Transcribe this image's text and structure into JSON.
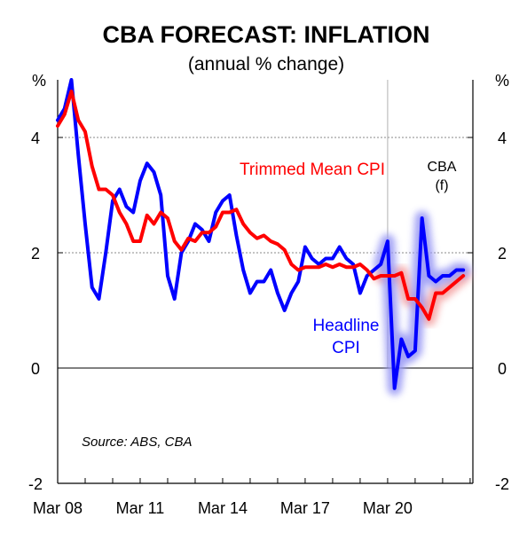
{
  "chart_data": {
    "type": "line",
    "title": "CBA FORECAST: INFLATION",
    "subtitle": "(annual % change)",
    "ylabel_left": "%",
    "ylabel_right": "%",
    "ylim": [
      -2,
      5
    ],
    "xlim": [
      2008.0,
      2023.1
    ],
    "yticks": [
      {
        "value": -2,
        "label": "-2"
      },
      {
        "value": 0,
        "label": "0"
      },
      {
        "value": 2,
        "label": "2"
      },
      {
        "value": 4,
        "label": "4"
      }
    ],
    "xticks": [
      {
        "value": 2008.0,
        "label": "Mar 08"
      },
      {
        "value": 2011.0,
        "label": "Mar 11"
      },
      {
        "value": 2014.0,
        "label": "Mar 14"
      },
      {
        "value": 2017.0,
        "label": "Mar 17"
      },
      {
        "value": 2020.0,
        "label": "Mar 20"
      }
    ],
    "gridlines": [
      2,
      4
    ],
    "forecast_start": 2020.0,
    "forecast_label_line1": "CBA",
    "forecast_label_line2": "(f)",
    "source": "Source: ABS, CBA",
    "series": [
      {
        "name": "Trimmed Mean CPI",
        "label_line1": "Trimmed Mean CPI",
        "color": "#ff0000",
        "x": [
          2008.0,
          2008.25,
          2008.5,
          2008.75,
          2009.0,
          2009.25,
          2009.5,
          2009.75,
          2010.0,
          2010.25,
          2010.5,
          2010.75,
          2011.0,
          2011.25,
          2011.5,
          2011.75,
          2012.0,
          2012.25,
          2012.5,
          2012.75,
          2013.0,
          2013.25,
          2013.5,
          2013.75,
          2014.0,
          2014.25,
          2014.5,
          2014.75,
          2015.0,
          2015.25,
          2015.5,
          2015.75,
          2016.0,
          2016.25,
          2016.5,
          2016.75,
          2017.0,
          2017.25,
          2017.5,
          2017.75,
          2018.0,
          2018.25,
          2018.5,
          2018.75,
          2019.0,
          2019.25,
          2019.5,
          2019.75,
          2020.0,
          2020.25,
          2020.5,
          2020.75,
          2021.0,
          2021.25,
          2021.5,
          2021.75,
          2022.0,
          2022.25,
          2022.5,
          2022.75
        ],
        "values": [
          4.2,
          4.4,
          4.8,
          4.3,
          4.1,
          3.5,
          3.1,
          3.1,
          3.0,
          2.7,
          2.5,
          2.2,
          2.2,
          2.65,
          2.5,
          2.7,
          2.6,
          2.2,
          2.05,
          2.25,
          2.2,
          2.35,
          2.35,
          2.45,
          2.7,
          2.7,
          2.75,
          2.5,
          2.35,
          2.25,
          2.3,
          2.2,
          2.15,
          2.05,
          1.8,
          1.7,
          1.75,
          1.75,
          1.75,
          1.8,
          1.75,
          1.8,
          1.75,
          1.75,
          1.8,
          1.7,
          1.55,
          1.6,
          1.6,
          1.6,
          1.65,
          1.2,
          1.2,
          1.05,
          0.85,
          1.3,
          1.3,
          1.4,
          1.5,
          1.6
        ]
      },
      {
        "name": "Headline CPI",
        "label_line1": "Headline",
        "label_line2": "CPI",
        "color": "#0000ff",
        "x": [
          2008.0,
          2008.25,
          2008.5,
          2008.75,
          2009.0,
          2009.25,
          2009.5,
          2009.75,
          2010.0,
          2010.25,
          2010.5,
          2010.75,
          2011.0,
          2011.25,
          2011.5,
          2011.75,
          2012.0,
          2012.25,
          2012.5,
          2012.75,
          2013.0,
          2013.25,
          2013.5,
          2013.75,
          2014.0,
          2014.25,
          2014.5,
          2014.75,
          2015.0,
          2015.25,
          2015.5,
          2015.75,
          2016.0,
          2016.25,
          2016.5,
          2016.75,
          2017.0,
          2017.25,
          2017.5,
          2017.75,
          2018.0,
          2018.25,
          2018.5,
          2018.75,
          2019.0,
          2019.25,
          2019.5,
          2019.75,
          2020.0,
          2020.25,
          2020.5,
          2020.75,
          2021.0,
          2021.25,
          2021.5,
          2021.75,
          2022.0,
          2022.25,
          2022.5,
          2022.75
        ],
        "values": [
          4.3,
          4.5,
          5.0,
          3.7,
          2.5,
          1.4,
          1.2,
          2.0,
          2.9,
          3.1,
          2.8,
          2.7,
          3.25,
          3.55,
          3.4,
          3.0,
          1.6,
          1.2,
          2.0,
          2.2,
          2.5,
          2.4,
          2.2,
          2.7,
          2.9,
          3.0,
          2.3,
          1.7,
          1.3,
          1.5,
          1.5,
          1.7,
          1.3,
          1.0,
          1.3,
          1.5,
          2.1,
          1.9,
          1.8,
          1.9,
          1.9,
          2.1,
          1.9,
          1.8,
          1.3,
          1.6,
          1.7,
          1.8,
          2.2,
          -0.35,
          0.5,
          0.2,
          0.3,
          2.6,
          1.6,
          1.5,
          1.6,
          1.6,
          1.7,
          1.7
        ]
      }
    ]
  }
}
